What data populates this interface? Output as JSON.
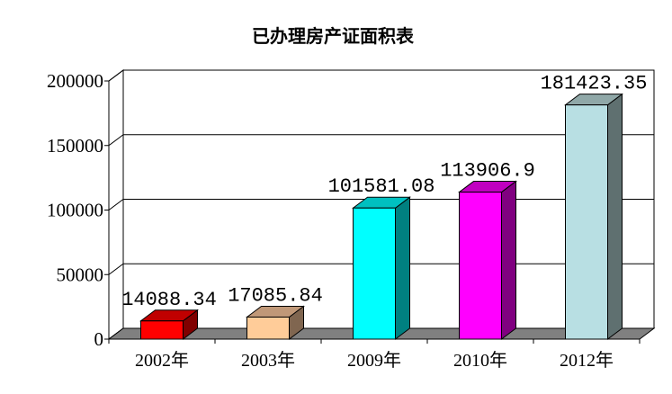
{
  "chart_data": {
    "type": "bar",
    "title": "已办理房产证面积表",
    "categories": [
      "2002年",
      "2003年",
      "2009年",
      "2010年",
      "2012年"
    ],
    "values": [
      14088.34,
      17085.84,
      101581.08,
      113906.9,
      181423.35
    ],
    "data_labels": [
      "14088.34",
      "17085.84",
      "101581.08",
      "113906.9",
      "181423.35"
    ],
    "ylim": [
      0,
      200000
    ],
    "yticks": [
      "0",
      "50000",
      "100000",
      "150000",
      "200000"
    ],
    "ytick_values": [
      0,
      50000,
      100000,
      150000,
      200000
    ],
    "grid": true,
    "three_d": true,
    "legend": "none",
    "colors": [
      {
        "front": "#ff0000",
        "side": "#800000",
        "top": "#c00000"
      },
      {
        "front": "#ffcc99",
        "side": "#806650",
        "top": "#c09878"
      },
      {
        "front": "#00ffff",
        "side": "#008080",
        "top": "#00c0c0"
      },
      {
        "front": "#ff00ff",
        "side": "#800080",
        "top": "#c000c0"
      },
      {
        "front": "#b8dfe3",
        "side": "#5f7070",
        "top": "#90a8a8"
      }
    ],
    "floor_color": "#808080"
  }
}
